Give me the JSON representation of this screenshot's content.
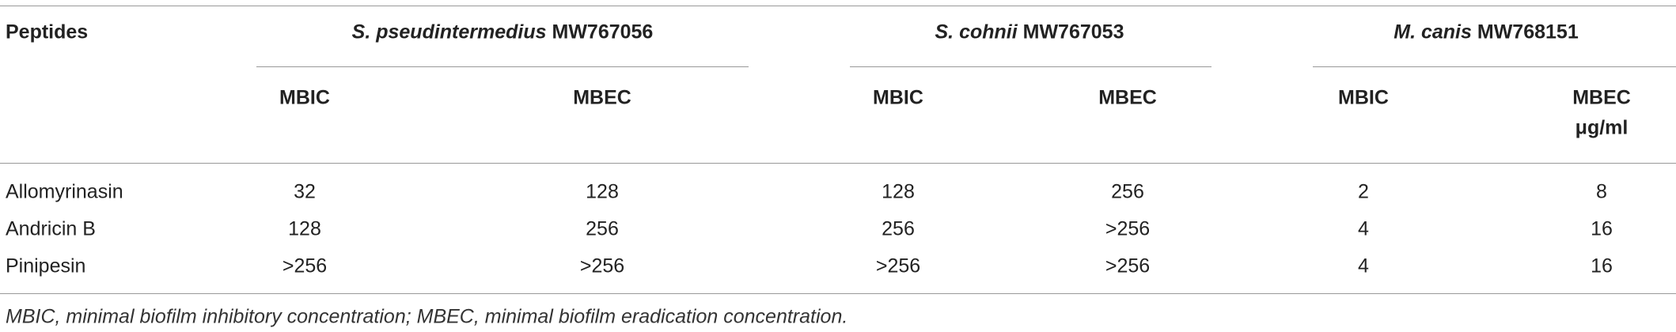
{
  "table": {
    "header": {
      "first": "Peptides",
      "groups": [
        {
          "species": "S. pseudintermedius",
          "strain": "MW767056"
        },
        {
          "species": "S. cohnii",
          "strain": "MW767053"
        },
        {
          "species": "M. canis",
          "strain": "MW768151"
        }
      ],
      "subheaders": [
        "MBIC",
        "MBEC",
        "MBIC",
        "MBEC",
        "MBIC",
        "MBEC"
      ],
      "unit": "μg/ml"
    },
    "rows": [
      {
        "name": "Allomyrinasin",
        "values": [
          "32",
          "128",
          "128",
          "256",
          "2",
          "8"
        ]
      },
      {
        "name": "Andricin B",
        "values": [
          "128",
          "256",
          "256",
          ">256",
          "4",
          "16"
        ]
      },
      {
        "name": "Pinipesin",
        "values": [
          ">256",
          ">256",
          ">256",
          ">256",
          "4",
          "16"
        ]
      }
    ],
    "footnote": "MBIC, minimal biofilm inhibitory concentration; MBEC, minimal biofilm eradication concentration."
  }
}
